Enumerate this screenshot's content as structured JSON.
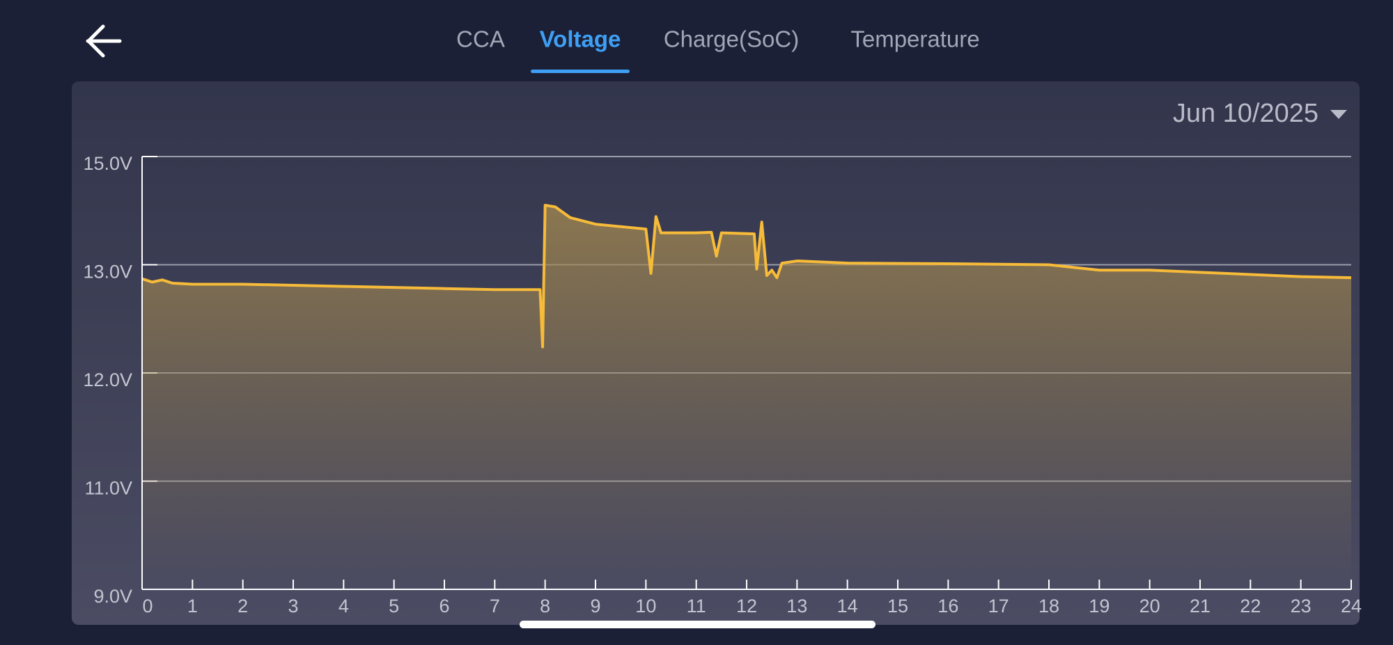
{
  "tabs": [
    "CCA",
    "Voltage",
    "Charge(SoC)",
    "Temperature"
  ],
  "selected_tab": 1,
  "date_selector": "Jun 10/2025",
  "chart_data": {
    "type": "area",
    "x": [
      0,
      0.2,
      0.4,
      0.6,
      1,
      2,
      3,
      4,
      5,
      6,
      7,
      7.9,
      7.95,
      8.0,
      8.2,
      8.5,
      9,
      10,
      10.1,
      10.2,
      10.3,
      11,
      11.3,
      11.4,
      11.5,
      12.15,
      12.2,
      12.3,
      12.4,
      12.5,
      12.6,
      12.7,
      13,
      14,
      16,
      18,
      19,
      20,
      21,
      22,
      23,
      24
    ],
    "values": [
      12.87,
      12.84,
      12.86,
      12.83,
      12.82,
      12.82,
      12.81,
      12.8,
      12.79,
      12.78,
      12.77,
      12.77,
      12.24,
      14.1,
      14.07,
      13.87,
      13.75,
      13.66,
      12.92,
      13.89,
      13.59,
      13.59,
      13.6,
      13.16,
      13.59,
      13.57,
      12.96,
      13.79,
      12.9,
      12.95,
      12.88,
      13.03,
      13.07,
      13.03,
      13.02,
      13.0,
      12.95,
      12.95,
      12.93,
      12.91,
      12.89,
      12.88
    ],
    "color": "#f7bb3a",
    "xlim": [
      0,
      24
    ],
    "xticks": [
      0,
      1,
      2,
      3,
      4,
      5,
      6,
      7,
      8,
      9,
      10,
      11,
      12,
      13,
      14,
      15,
      16,
      17,
      18,
      19,
      20,
      21,
      22,
      23,
      24
    ],
    "ylim": [
      9,
      15
    ],
    "yticks": [
      {
        "value": 9,
        "label": "9.0V"
      },
      {
        "value": 11,
        "label": "11.0V"
      },
      {
        "value": 12,
        "label": "12.0V"
      },
      {
        "value": 13,
        "label": "13.0V"
      },
      {
        "value": 15,
        "label": "15.0V"
      }
    ],
    "grid": true
  }
}
